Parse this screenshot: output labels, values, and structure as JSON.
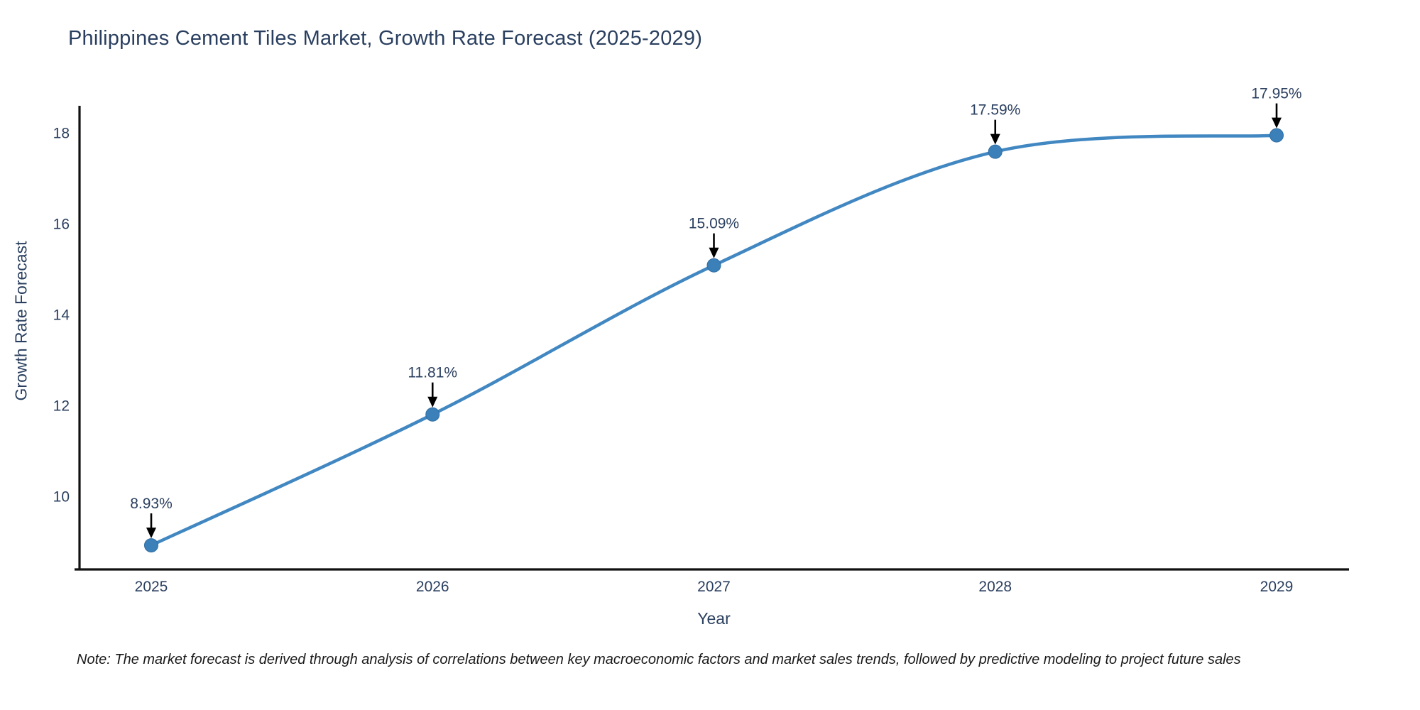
{
  "note": "Note: The market forecast is derived through analysis of correlations between key macroeconomic factors and market sales trends, followed by predictive modeling to project future sales",
  "chart_data": {
    "type": "line",
    "title": "Philippines Cement Tiles Market, Growth Rate Forecast (2025-2029)",
    "xlabel": "Year",
    "ylabel": "Growth Rate Forecast",
    "x": [
      "2025",
      "2026",
      "2027",
      "2028",
      "2029"
    ],
    "values": [
      8.93,
      11.81,
      15.09,
      17.59,
      17.95
    ],
    "point_labels": [
      "8.93%",
      "11.81%",
      "15.09%",
      "17.59%",
      "17.95%"
    ],
    "yticks": [
      10,
      12,
      14,
      16,
      18
    ],
    "ylim": [
      8.4,
      18.6
    ],
    "line_shape": "spline",
    "grid": false,
    "legend": false,
    "colors": {
      "line": "#4187c1",
      "marker": "#3c80ba",
      "marker_edge": "#2f6da3",
      "arrow": "#000000",
      "annotation_text": "#2a3f5f",
      "tick_text": "#2a3f5f",
      "title_text": "#2a3f5f",
      "axis_line": "#111111",
      "note_text": "#1a1a1a",
      "background": "#ffffff"
    }
  }
}
